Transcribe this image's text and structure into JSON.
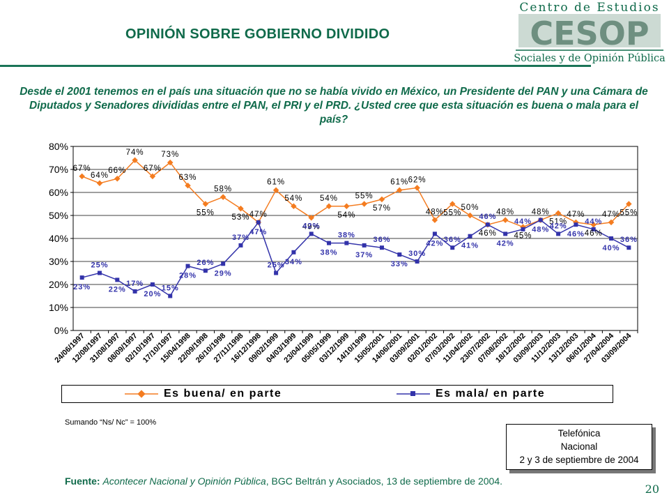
{
  "header": {
    "title": "OPINIÓN SOBRE GOBIERNO DIVIDIDO",
    "logo_top": "Centro de Estudios",
    "logo_mark": "CESOP",
    "logo_bottom": "Sociales y de Opinión Pública"
  },
  "question": "Desde el 2001 tenemos en el país una situación que no se había vivido en México, un Presidente del PAN y una Cámara de Diputados y Senadores divididas entre el PAN, el PRI y el PRD. ¿Usted cree que esta situación es buena o mala para el país?",
  "note": "Sumando “Ns/ Nc” = 100%",
  "method_box": {
    "line1": "Telefónica",
    "line2": "Nacional",
    "line3": "2 y 3 de septiembre de 2004"
  },
  "source": {
    "label": "Fuente:",
    "italic": "Acontecer Nacional y Opinión Pública",
    "rest": ", BGC Beltrán y Asociados, 13 de septiembre de 2004."
  },
  "page_number": "20",
  "colors": {
    "green": "#0f6a4a",
    "buena": "#f47c20",
    "mala": "#3333aa"
  },
  "chart_data": {
    "type": "line",
    "ylim": [
      0,
      80
    ],
    "yticks": [
      "0%",
      "10%",
      "20%",
      "30%",
      "40%",
      "50%",
      "60%",
      "70%",
      "80%"
    ],
    "grid": true,
    "legend_position": "bottom",
    "categories": [
      "24/06/1997",
      "12/08/1997",
      "31/08/1997",
      "08/09/1997",
      "02/10/1997",
      "17/10/1997",
      "15/04/1998",
      "22/09/1998",
      "26/10/1998",
      "27/11/1998",
      "16/12/1998",
      "09/02/1999",
      "04/03/1999",
      "23/04/1999",
      "05/05/1999",
      "03/12/1999",
      "14/10/1999",
      "15/05/2001",
      "14/06/2001",
      "03/09/2001",
      "02/01/2002",
      "07/03/2002",
      "11/04/2002",
      "23/07/2002",
      "07/08/2002",
      "18/12/2002",
      "03/09/2003",
      "11/12/2003",
      "13/12/2003",
      "06/01/2004",
      "27/04/2004",
      "03/09/2004"
    ],
    "series": [
      {
        "name": "Es buena/ en parte",
        "values": [
          67,
          64,
          66,
          74,
          67,
          73,
          63,
          55,
          58,
          53,
          47,
          61,
          54,
          49,
          54,
          54,
          55,
          57,
          61,
          62,
          48,
          55,
          50,
          46,
          48,
          45,
          48,
          51,
          47,
          46,
          47,
          55
        ],
        "labels": [
          "67%",
          "64%",
          "66%",
          "74%",
          "67%",
          "73%",
          "63%",
          "55%",
          "58%",
          "53%",
          "47%",
          "61%",
          "54%",
          "49%",
          "54%",
          "54%",
          "55%",
          "57%",
          "61%",
          "62%",
          "48%",
          "55%",
          "50%",
          "46%",
          "48%",
          "45%",
          "48%",
          "51%",
          "47%",
          "46%",
          "47%",
          "55%"
        ]
      },
      {
        "name": "Es mala/ en parte",
        "values": [
          23,
          25,
          22,
          17,
          20,
          15,
          28,
          26,
          29,
          37,
          47,
          25,
          34,
          42,
          38,
          38,
          37,
          36,
          33,
          30,
          42,
          36,
          41,
          46,
          42,
          44,
          48,
          42,
          46,
          44,
          40,
          36
        ],
        "labels": [
          "23%",
          "25%",
          "22%",
          "17%",
          "20%",
          "15%",
          "28%",
          "26%",
          "29%",
          "37%",
          "47%",
          "25%",
          "34%",
          "42%",
          "38%",
          "38%",
          "37%",
          "36%",
          "33%",
          "30%",
          "42%",
          "36%",
          "41%",
          "46%",
          "42%",
          "44%",
          "48%",
          "42%",
          "46%",
          "44%",
          "40%",
          "36%"
        ]
      }
    ]
  }
}
